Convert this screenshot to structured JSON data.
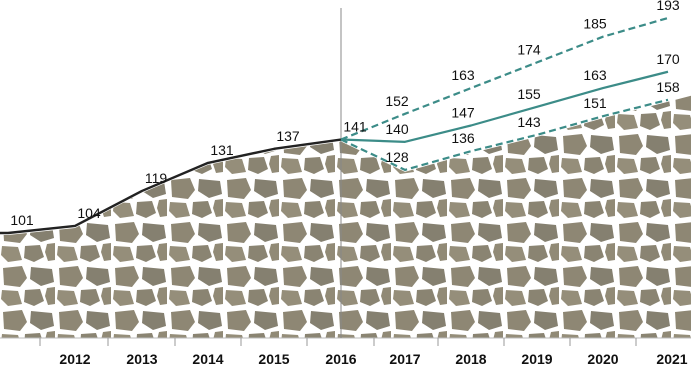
{
  "chart_data": {
    "type": "line",
    "categories": [
      "2012",
      "2013",
      "2014",
      "2015",
      "2016",
      "2017",
      "2018",
      "2019",
      "2020",
      "2021"
    ],
    "historical": {
      "x": [
        "2011",
        "2012",
        "2013",
        "2014",
        "2015",
        "2016"
      ],
      "values": [
        101,
        104,
        119,
        131,
        137,
        141
      ]
    },
    "series": [
      {
        "x": [
          "2016",
          "2017",
          "2018",
          "2019",
          "2020",
          "2021"
        ],
        "values": [
          141,
          152,
          163,
          174,
          185,
          193
        ],
        "style": "dashed"
      },
      {
        "x": [
          "2016",
          "2017",
          "2018",
          "2019",
          "2020",
          "2021"
        ],
        "values": [
          141,
          140,
          147,
          155,
          163,
          170
        ],
        "style": "solid"
      },
      {
        "x": [
          "2016",
          "2017",
          "2018",
          "2019",
          "2020",
          "2021"
        ],
        "values": [
          141,
          128,
          136,
          143,
          151,
          158
        ],
        "style": "dashed"
      }
    ],
    "data_labels": {
      "historical": [
        "101",
        "104",
        "119",
        "131",
        "137",
        "141"
      ],
      "high": [
        "152",
        "163",
        "174",
        "185",
        "193"
      ],
      "mid": [
        "140",
        "147",
        "155",
        "163",
        "170"
      ],
      "low": [
        "128",
        "136",
        "143",
        "151",
        "158"
      ]
    },
    "colors": {
      "historical_line": "#222222",
      "forecast_lines": "#3c8c88",
      "stone_fill": "#8e8774",
      "stone_gap": "#ffffff",
      "divider": "#888888"
    },
    "divider_at": "2016",
    "background": "stone-wall texture below the line",
    "title": "",
    "xlabel": "",
    "ylabel": "",
    "grid": false,
    "legend": "none"
  }
}
